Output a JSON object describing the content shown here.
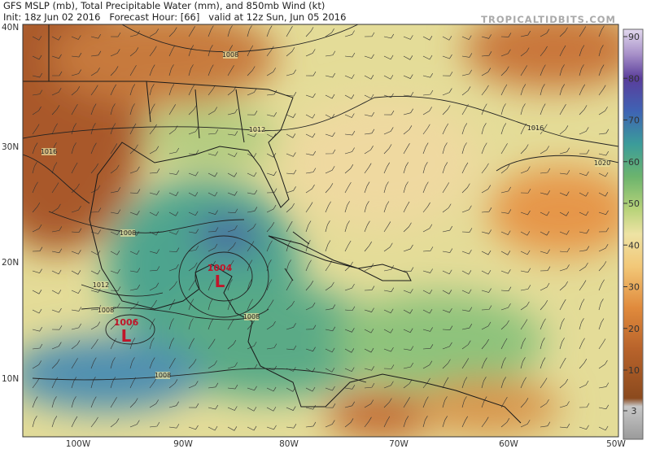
{
  "header": {
    "title": "GFS MSLP (mb), Total Precipitable Water (mm), and 850mb Wind (kt)",
    "subtitle": "Init: 18z Jun 02 2016   Forecast Hour: [66]   valid at 12z Sun, Jun 05 2016",
    "site": "TROPICALTIDBITS.COM"
  },
  "map": {
    "lat_labels": [
      "40N",
      "30N",
      "20N",
      "10N"
    ],
    "lon_labels": [
      "100W",
      "90W",
      "80W",
      "70W",
      "60W",
      "50W"
    ],
    "isobar_labels": [
      "1008",
      "1012",
      "1016",
      "1016",
      "1020",
      "1008",
      "1012",
      "1008",
      "1008",
      "1008"
    ],
    "lows": [
      {
        "pressure": "1004",
        "symbol": "L"
      },
      {
        "pressure": "1006",
        "symbol": "L"
      }
    ]
  },
  "colorbar": {
    "ticks": [
      3,
      10,
      20,
      30,
      40,
      50,
      60,
      70,
      80,
      90
    ]
  }
}
